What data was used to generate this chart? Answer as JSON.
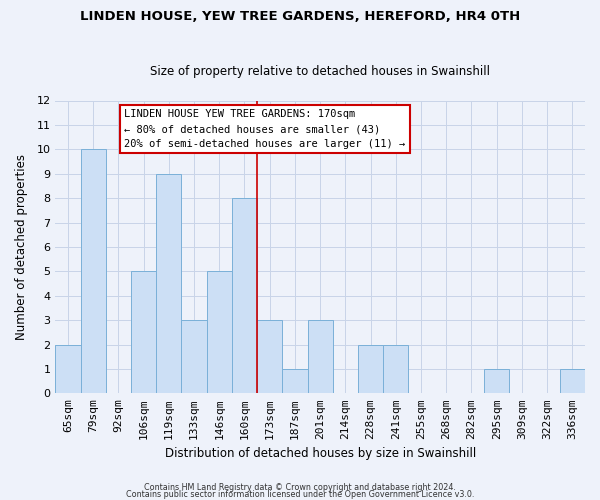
{
  "title": "LINDEN HOUSE, YEW TREE GARDENS, HEREFORD, HR4 0TH",
  "subtitle": "Size of property relative to detached houses in Swainshill",
  "xlabel": "Distribution of detached houses by size in Swainshill",
  "ylabel": "Number of detached properties",
  "bin_labels": [
    "65sqm",
    "79sqm",
    "92sqm",
    "106sqm",
    "119sqm",
    "133sqm",
    "146sqm",
    "160sqm",
    "173sqm",
    "187sqm",
    "201sqm",
    "214sqm",
    "228sqm",
    "241sqm",
    "255sqm",
    "268sqm",
    "282sqm",
    "295sqm",
    "309sqm",
    "322sqm",
    "336sqm"
  ],
  "bar_values": [
    2,
    10,
    0,
    5,
    9,
    3,
    5,
    8,
    3,
    1,
    3,
    0,
    2,
    2,
    0,
    0,
    0,
    1,
    0,
    0,
    1
  ],
  "bar_color": "#ccdff5",
  "bar_edgecolor": "#7ab0d8",
  "highlight_line_index": 8,
  "ylim": [
    0,
    12
  ],
  "yticks": [
    0,
    1,
    2,
    3,
    4,
    5,
    6,
    7,
    8,
    9,
    10,
    11,
    12
  ],
  "annotation_box_text_line1": "LINDEN HOUSE YEW TREE GARDENS: 170sqm",
  "annotation_box_text_line2": "← 80% of detached houses are smaller (43)",
  "annotation_box_text_line3": "20% of semi-detached houses are larger (11) →",
  "annotation_box_color": "#cc0000",
  "grid_color": "#c8d4e8",
  "background_color": "#eef2fa",
  "footer_line1": "Contains HM Land Registry data © Crown copyright and database right 2024.",
  "footer_line2": "Contains public sector information licensed under the Open Government Licence v3.0."
}
